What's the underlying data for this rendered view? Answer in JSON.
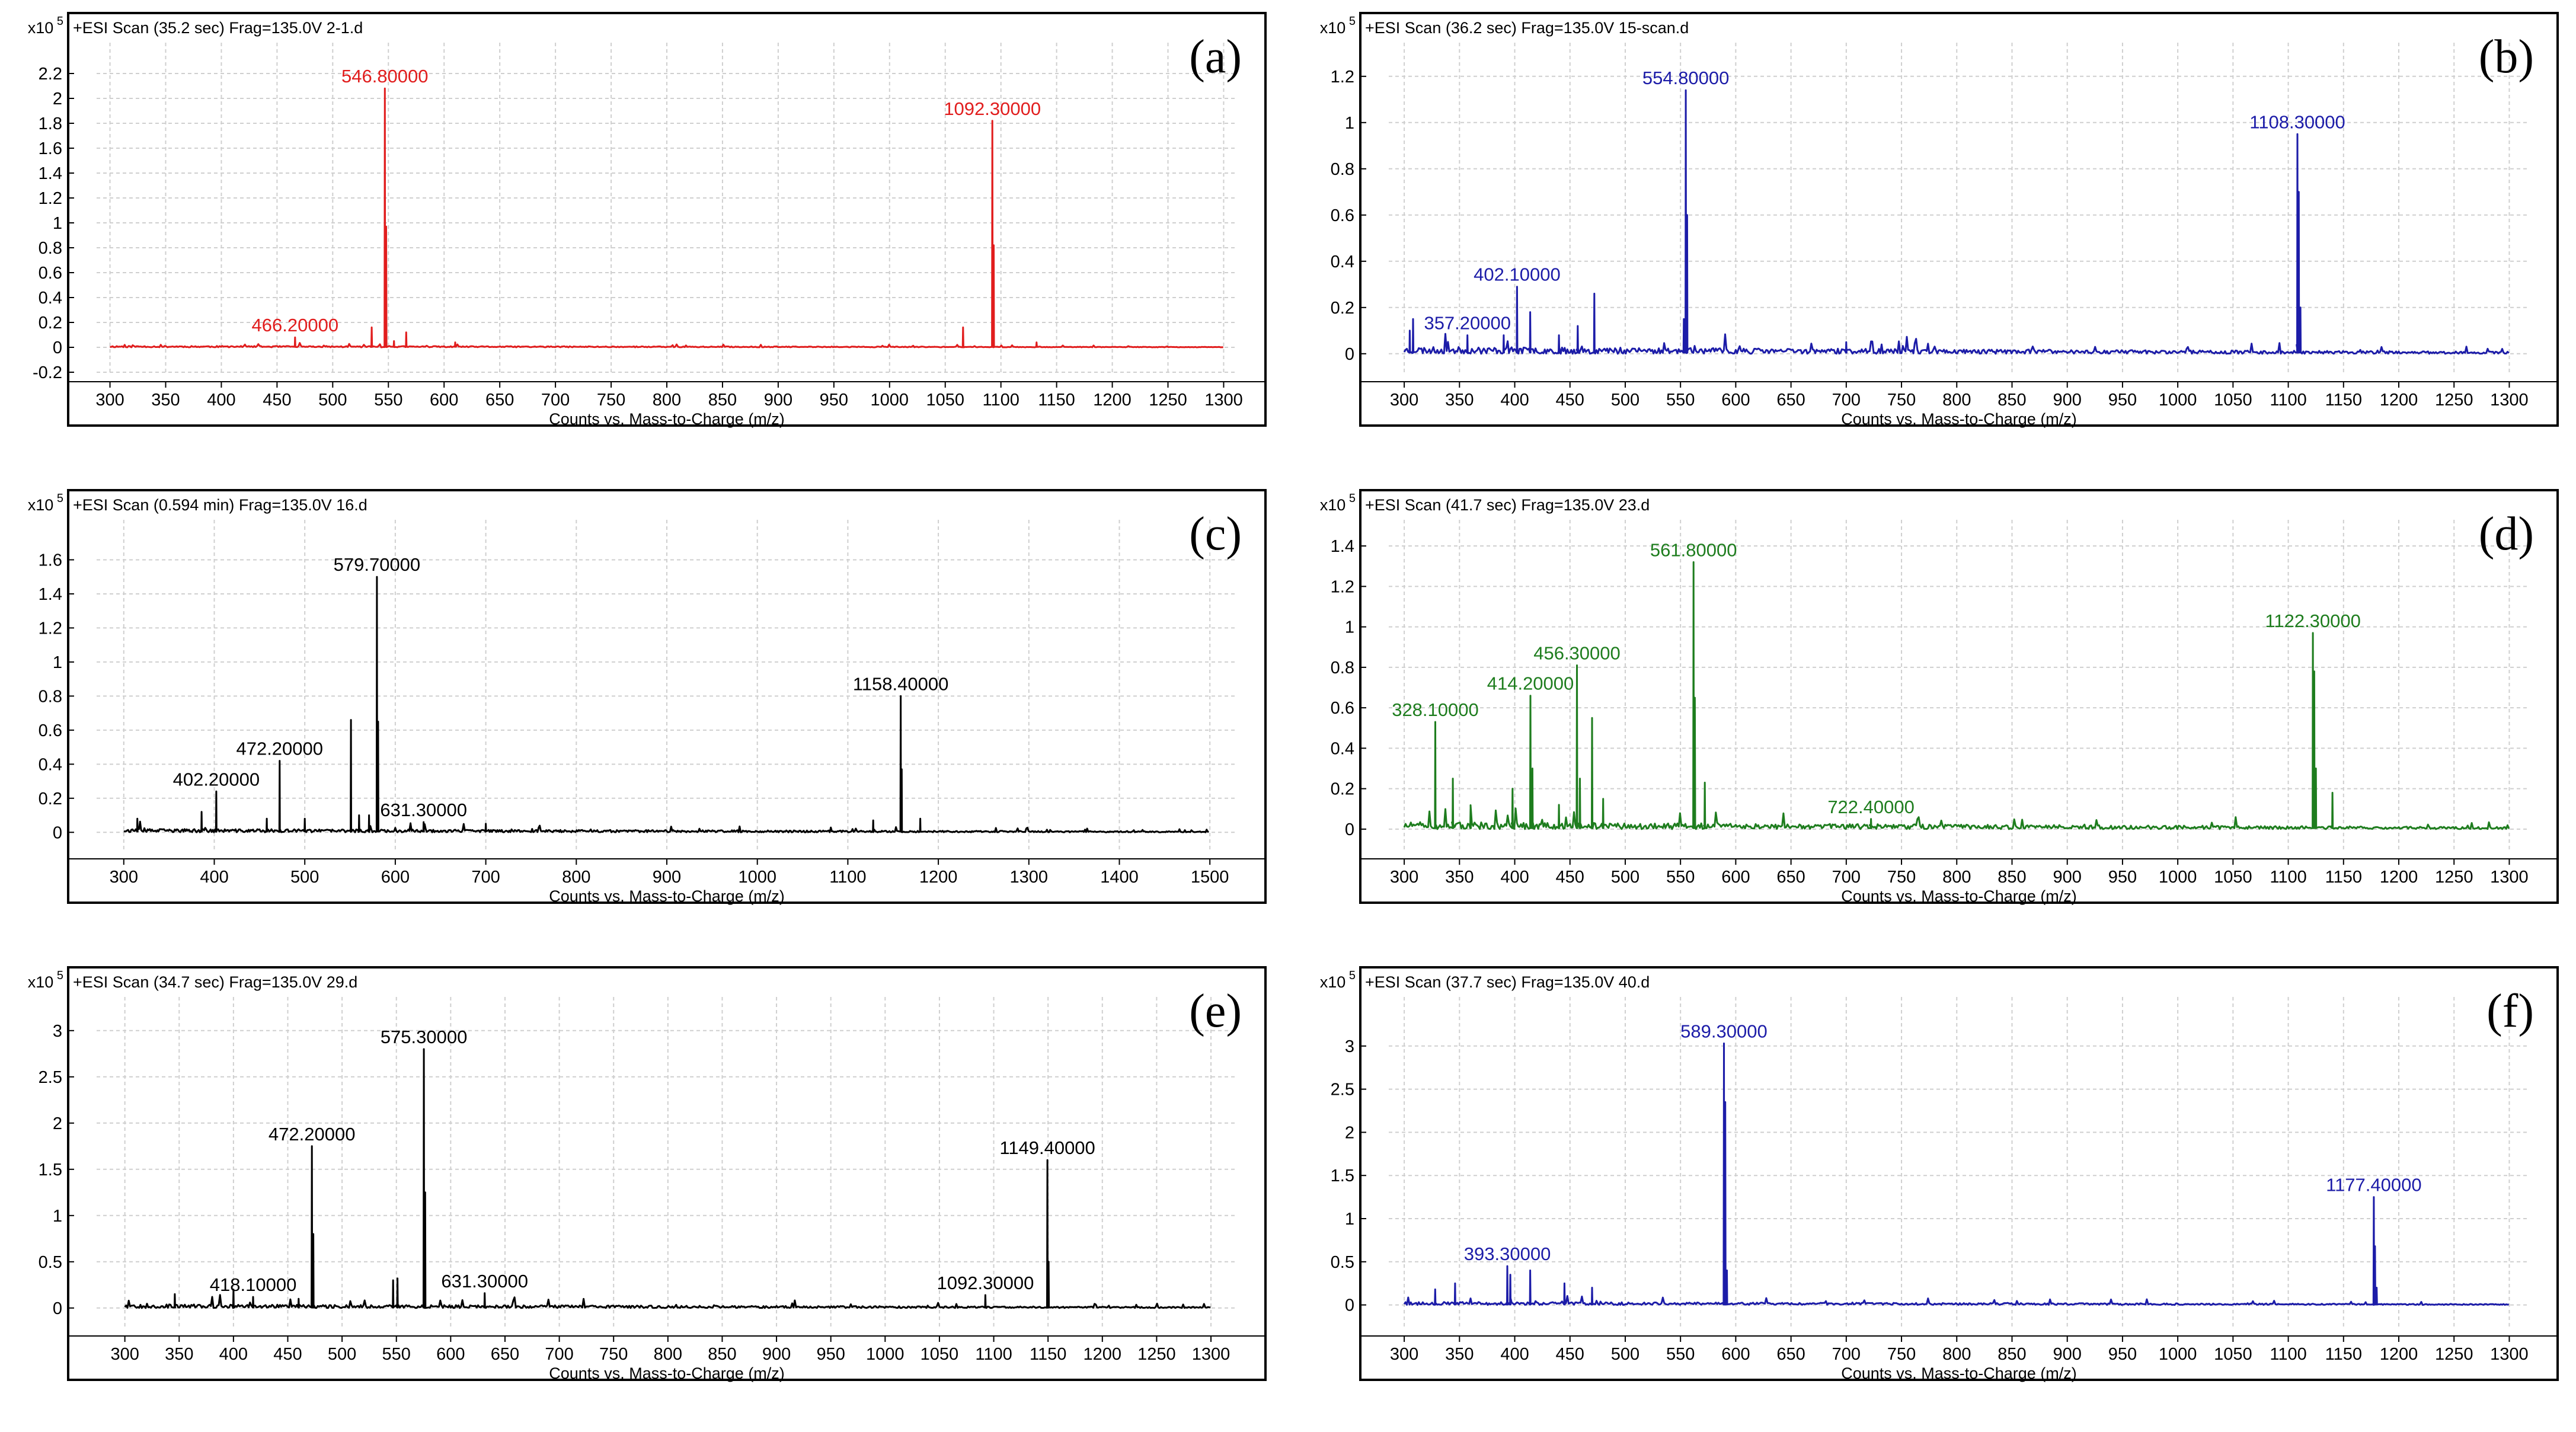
{
  "figure": {
    "colors": {
      "red": "#e11d1d",
      "blue": "#1c1ca8",
      "black": "#000000",
      "green": "#1e7d1e",
      "grid": "#cfcfcf"
    }
  },
  "chart_data": [
    {
      "id": "a",
      "letter": "(a)",
      "type": "line",
      "color": "#e11d1d",
      "header": "+ESI Scan (35.2 sec) Frag=135.0V 2-1.d",
      "scale_text": "x10",
      "scale_exp": "5",
      "xlabel": "Counts vs. Mass-to-Charge (m/z)",
      "xlim": [
        288,
        1312
      ],
      "ylim": [
        -0.2,
        2.4
      ],
      "xticks": [
        300,
        350,
        400,
        450,
        500,
        550,
        600,
        650,
        700,
        750,
        800,
        850,
        900,
        950,
        1000,
        1050,
        1100,
        1150,
        1200,
        1250,
        1300
      ],
      "yticks": [
        -0.2,
        0,
        0.2,
        0.4,
        0.6,
        0.8,
        1,
        1.2,
        1.4,
        1.6,
        1.8,
        2,
        2.2
      ],
      "ytick_labels": [
        "-0.2",
        "0",
        "0.2",
        "0.4",
        "0.6",
        "0.8",
        "1",
        "1.2",
        "1.4",
        "1.6",
        "1.8",
        "2",
        "2.2"
      ],
      "noise": 0.012,
      "seed": 11,
      "x_range": [
        300,
        1300
      ],
      "peaks": [
        [
          466.2,
          0.08
        ],
        [
          535,
          0.16
        ],
        [
          546.8,
          2.08
        ],
        [
          548,
          0.97
        ],
        [
          555,
          0.05
        ],
        [
          566,
          0.12
        ],
        [
          610,
          0.04
        ],
        [
          1066,
          0.16
        ],
        [
          1092.3,
          1.82
        ],
        [
          1093.5,
          0.82
        ],
        [
          1132,
          0.04
        ]
      ],
      "labels": [
        {
          "x": 546.8,
          "y": 2.08,
          "text": "546.80000"
        },
        {
          "x": 1092.3,
          "y": 1.82,
          "text": "1092.30000"
        },
        {
          "x": 466.2,
          "y": 0.08,
          "text": "466.20000"
        }
      ]
    },
    {
      "id": "b",
      "letter": "(b)",
      "type": "line",
      "color": "#1c1ca8",
      "header": "+ESI Scan (36.2 sec) Frag=135.0V 15-scan.d",
      "scale_text": "x10",
      "scale_exp": "5",
      "xlabel": "Counts vs. Mass-to-Charge (m/z)",
      "xlim": [
        286,
        1318
      ],
      "ylim": [
        -0.08,
        1.32
      ],
      "xticks": [
        300,
        350,
        400,
        450,
        500,
        550,
        600,
        650,
        700,
        750,
        800,
        850,
        900,
        950,
        1000,
        1050,
        1100,
        1150,
        1200,
        1250,
        1300
      ],
      "yticks": [
        0,
        0.2,
        0.4,
        0.6,
        0.8,
        1,
        1.2
      ],
      "ytick_labels": [
        "0",
        "0.2",
        "0.4",
        "0.6",
        "0.8",
        "1",
        "1.2"
      ],
      "noise": 0.03,
      "seed": 23,
      "x_range": [
        300,
        1300
      ],
      "peaks": [
        [
          305,
          0.1
        ],
        [
          308,
          0.15
        ],
        [
          357.2,
          0.08
        ],
        [
          390,
          0.08
        ],
        [
          402.1,
          0.29
        ],
        [
          414,
          0.18
        ],
        [
          440,
          0.08
        ],
        [
          457,
          0.12
        ],
        [
          472,
          0.26
        ],
        [
          553,
          0.15
        ],
        [
          554.8,
          1.14
        ],
        [
          556,
          0.6
        ],
        [
          700,
          0.05
        ],
        [
          1108.3,
          0.95
        ],
        [
          1109.5,
          0.7
        ],
        [
          1111,
          0.2
        ]
      ],
      "labels": [
        {
          "x": 554.8,
          "y": 1.14,
          "text": "554.80000"
        },
        {
          "x": 1108.3,
          "y": 0.95,
          "text": "1108.30000"
        },
        {
          "x": 402.1,
          "y": 0.29,
          "text": "402.10000"
        },
        {
          "x": 357.2,
          "y": 0.08,
          "text": "357.20000"
        }
      ]
    },
    {
      "id": "c",
      "letter": "(c)",
      "type": "line",
      "color": "#000000",
      "header": "+ESI Scan (0.594 min) Frag=135.0V 16.d",
      "scale_text": "x10",
      "scale_exp": "5",
      "xlabel": "Counts vs. Mass-to-Charge (m/z)",
      "xlim": [
        270,
        1530
      ],
      "ylim": [
        -0.1,
        1.8
      ],
      "xticks": [
        300,
        400,
        500,
        600,
        700,
        800,
        900,
        1000,
        1100,
        1200,
        1300,
        1400,
        1500
      ],
      "yticks": [
        0,
        0.2,
        0.4,
        0.6,
        0.8,
        1,
        1.2,
        1.4,
        1.6
      ],
      "ytick_labels": [
        "0",
        "0.2",
        "0.4",
        "0.6",
        "0.8",
        "1",
        "1.2",
        "1.4",
        "1.6"
      ],
      "noise": 0.02,
      "seed": 37,
      "x_range": [
        300,
        1500
      ],
      "peaks": [
        [
          315,
          0.08
        ],
        [
          386,
          0.12
        ],
        [
          402.2,
          0.24
        ],
        [
          458,
          0.08
        ],
        [
          472.2,
          0.42
        ],
        [
          500,
          0.08
        ],
        [
          551,
          0.66
        ],
        [
          560,
          0.1
        ],
        [
          571,
          0.1
        ],
        [
          579.7,
          1.5
        ],
        [
          581,
          0.65
        ],
        [
          631.3,
          0.06
        ],
        [
          700,
          0.05
        ],
        [
          1128,
          0.07
        ],
        [
          1158.4,
          0.8
        ],
        [
          1159.5,
          0.37
        ],
        [
          1180,
          0.08
        ]
      ],
      "labels": [
        {
          "x": 579.7,
          "y": 1.5,
          "text": "579.70000"
        },
        {
          "x": 1158.4,
          "y": 0.8,
          "text": "1158.40000"
        },
        {
          "x": 472.2,
          "y": 0.42,
          "text": "472.20000"
        },
        {
          "x": 402.2,
          "y": 0.24,
          "text": "402.20000"
        },
        {
          "x": 631.3,
          "y": 0.06,
          "text": "631.30000"
        }
      ]
    },
    {
      "id": "d",
      "letter": "(d)",
      "type": "line",
      "color": "#1e7d1e",
      "header": "+ESI Scan (41.7 sec) Frag=135.0V 23.d",
      "scale_text": "x10",
      "scale_exp": "5",
      "xlabel": "Counts vs. Mass-to-Charge (m/z)",
      "xlim": [
        286,
        1318
      ],
      "ylim": [
        -0.1,
        1.5
      ],
      "xticks": [
        300,
        350,
        400,
        450,
        500,
        550,
        600,
        650,
        700,
        750,
        800,
        850,
        900,
        950,
        1000,
        1050,
        1100,
        1150,
        1200,
        1250,
        1300
      ],
      "yticks": [
        0,
        0.2,
        0.4,
        0.6,
        0.8,
        1,
        1.2,
        1.4
      ],
      "ytick_labels": [
        "0",
        "0.2",
        "0.4",
        "0.6",
        "0.8",
        "1",
        "1.2",
        "1.4"
      ],
      "noise": 0.035,
      "seed": 51,
      "x_range": [
        300,
        1300
      ],
      "peaks": [
        [
          328.1,
          0.53
        ],
        [
          344,
          0.25
        ],
        [
          360,
          0.1
        ],
        [
          398,
          0.2
        ],
        [
          414.2,
          0.66
        ],
        [
          416,
          0.3
        ],
        [
          440,
          0.12
        ],
        [
          456.3,
          0.81
        ],
        [
          459,
          0.25
        ],
        [
          470,
          0.55
        ],
        [
          480,
          0.15
        ],
        [
          561.8,
          1.32
        ],
        [
          563,
          0.65
        ],
        [
          572,
          0.23
        ],
        [
          722.4,
          0.05
        ],
        [
          1122.3,
          0.97
        ],
        [
          1123.5,
          0.78
        ],
        [
          1125,
          0.3
        ],
        [
          1140,
          0.18
        ]
      ],
      "labels": [
        {
          "x": 561.8,
          "y": 1.32,
          "text": "561.80000"
        },
        {
          "x": 1122.3,
          "y": 0.97,
          "text": "1122.30000"
        },
        {
          "x": 456.3,
          "y": 0.81,
          "text": "456.30000"
        },
        {
          "x": 414.2,
          "y": 0.66,
          "text": "414.20000"
        },
        {
          "x": 328.1,
          "y": 0.53,
          "text": "328.10000"
        },
        {
          "x": 722.4,
          "y": 0.05,
          "text": "722.40000"
        }
      ]
    },
    {
      "id": "e",
      "letter": "(e)",
      "type": "line",
      "color": "#000000",
      "header": "+ESI Scan (34.7 sec) Frag=135.0V 29.d",
      "scale_text": "x10",
      "scale_exp": "5",
      "xlabel": "Counts vs. Mass-to-Charge (m/z)",
      "xlim": [
        274,
        1324
      ],
      "ylim": [
        -0.2,
        3.3
      ],
      "xticks": [
        300,
        350,
        400,
        450,
        500,
        550,
        600,
        650,
        700,
        750,
        800,
        850,
        900,
        950,
        1000,
        1050,
        1100,
        1150,
        1200,
        1250,
        1300
      ],
      "yticks": [
        0,
        0.5,
        1,
        1.5,
        2,
        2.5,
        3
      ],
      "ytick_labels": [
        "0",
        "0.5",
        "1",
        "1.5",
        "2",
        "2.5",
        "3"
      ],
      "noise": 0.04,
      "seed": 67,
      "x_range": [
        300,
        1300
      ],
      "peaks": [
        [
          346,
          0.15
        ],
        [
          400,
          0.2
        ],
        [
          418.1,
          0.12
        ],
        [
          460,
          0.1
        ],
        [
          472.2,
          1.75
        ],
        [
          473.5,
          0.8
        ],
        [
          547,
          0.3
        ],
        [
          551,
          0.32
        ],
        [
          575.3,
          2.8
        ],
        [
          576.5,
          1.25
        ],
        [
          631.3,
          0.16
        ],
        [
          1092.3,
          0.14
        ],
        [
          1149.4,
          1.6
        ],
        [
          1150.5,
          0.5
        ]
      ],
      "labels": [
        {
          "x": 575.3,
          "y": 2.8,
          "text": "575.30000"
        },
        {
          "x": 472.2,
          "y": 1.75,
          "text": "472.20000"
        },
        {
          "x": 1149.4,
          "y": 1.6,
          "text": "1149.40000"
        },
        {
          "x": 418.1,
          "y": 0.12,
          "text": "418.10000"
        },
        {
          "x": 631.3,
          "y": 0.16,
          "text": "631.30000"
        },
        {
          "x": 1092.3,
          "y": 0.14,
          "text": "1092.30000"
        }
      ]
    },
    {
      "id": "f",
      "letter": "(f)",
      "type": "line",
      "color": "#1c1ca8",
      "header": "+ESI Scan (37.7 sec) Frag=135.0V 40.d",
      "scale_text": "x10",
      "scale_exp": "5",
      "xlabel": "Counts vs. Mass-to-Charge (m/z)",
      "xlim": [
        286,
        1318
      ],
      "ylim": [
        -0.25,
        3.5
      ],
      "xticks": [
        300,
        350,
        400,
        450,
        500,
        550,
        600,
        650,
        700,
        750,
        800,
        850,
        900,
        950,
        1000,
        1050,
        1100,
        1150,
        1200,
        1250,
        1300
      ],
      "yticks": [
        0,
        0.5,
        1,
        1.5,
        2,
        2.5,
        3
      ],
      "ytick_labels": [
        "0",
        "0.5",
        "1",
        "1.5",
        "2",
        "2.5",
        "3"
      ],
      "noise": 0.035,
      "seed": 79,
      "x_range": [
        300,
        1300
      ],
      "peaks": [
        [
          328,
          0.18
        ],
        [
          346,
          0.25
        ],
        [
          393.3,
          0.45
        ],
        [
          396,
          0.35
        ],
        [
          414,
          0.4
        ],
        [
          445,
          0.25
        ],
        [
          470,
          0.2
        ],
        [
          589.3,
          3.03
        ],
        [
          590.5,
          2.35
        ],
        [
          592,
          0.4
        ],
        [
          1177.4,
          1.25
        ],
        [
          1178.5,
          0.68
        ],
        [
          1180,
          0.2
        ]
      ],
      "labels": [
        {
          "x": 589.3,
          "y": 3.03,
          "text": "589.30000"
        },
        {
          "x": 1177.4,
          "y": 1.25,
          "text": "1177.40000"
        },
        {
          "x": 393.3,
          "y": 0.45,
          "text": "393.30000"
        }
      ]
    }
  ]
}
